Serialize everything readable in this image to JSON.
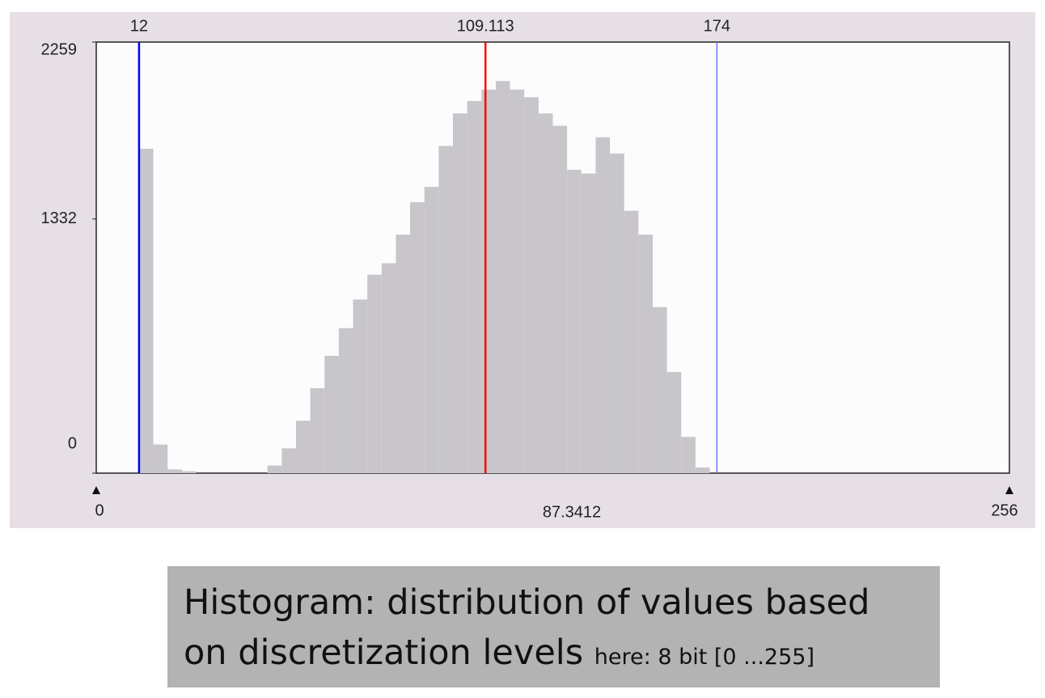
{
  "chart_data": {
    "type": "histogram",
    "bins": [
      0,
      4,
      8,
      12,
      16,
      20,
      24,
      28,
      32,
      36,
      40,
      44,
      48,
      52,
      56,
      60,
      64,
      68,
      72,
      76,
      80,
      84,
      88,
      92,
      96,
      100,
      104,
      108,
      112,
      116,
      120,
      124,
      128,
      132,
      136,
      140,
      144,
      148,
      152,
      156,
      160,
      164,
      168,
      172,
      176,
      180,
      184,
      188,
      192,
      196,
      200,
      204,
      208,
      212,
      216,
      220,
      224,
      228,
      232,
      236,
      240,
      244,
      248,
      252,
      256
    ],
    "values": [
      0,
      0,
      0,
      1700,
      150,
      20,
      10,
      0,
      0,
      0,
      0,
      0,
      40,
      130,
      275,
      445,
      615,
      760,
      910,
      1040,
      1100,
      1250,
      1420,
      1500,
      1715,
      1885,
      1950,
      2010,
      2055,
      2010,
      1970,
      1885,
      1820,
      1590,
      1570,
      1760,
      1675,
      1375,
      1250,
      870,
      530,
      190,
      30,
      0,
      0,
      0,
      0,
      0,
      0,
      0,
      0,
      0,
      0,
      0,
      0,
      0,
      0,
      0,
      0,
      0,
      0,
      0,
      0,
      0
    ],
    "color": "#c8c6ca",
    "xlim": [
      0,
      256
    ],
    "xticks": [
      0,
      256
    ],
    "ylim": [
      0,
      2259
    ],
    "yticks": [
      0,
      1332,
      2259
    ],
    "markers": [
      {
        "value": 12,
        "color": "#0000ff"
      },
      {
        "value": 109.113,
        "color": "#ff0000"
      },
      {
        "value": 174,
        "color": "#6f6fff"
      }
    ],
    "center_label": 87.3412
  },
  "caption": {
    "main": "Histogram: distribution of values based on discretization levels",
    "note": "here: 8 bit [0 ...255]"
  }
}
